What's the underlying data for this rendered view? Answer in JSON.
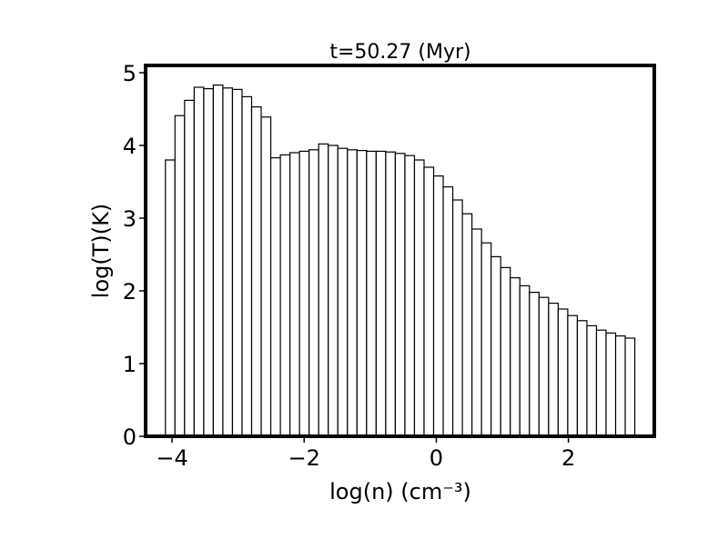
{
  "chart_data": {
    "type": "bar",
    "title": "t=50.27 (Myr)",
    "xlabel": "log(n) (cm⁻³)",
    "ylabel": "log(T)(K)",
    "xlim": [
      -4.4,
      3.3
    ],
    "ylim": [
      0,
      5.1
    ],
    "grid": false,
    "x_tick_labels": [
      "−4",
      "−2",
      "0",
      "2"
    ],
    "y_tick_labels": [
      "0",
      "1",
      "2",
      "3",
      "4",
      "5"
    ],
    "bin_edges": [
      -4.1,
      -3.955,
      -3.81,
      -3.665,
      -3.52,
      -3.375,
      -3.23,
      -3.085,
      -2.94,
      -2.795,
      -2.65,
      -2.505,
      -2.36,
      -2.215,
      -2.07,
      -1.925,
      -1.78,
      -1.635,
      -1.49,
      -1.345,
      -1.2,
      -1.055,
      -0.91,
      -0.765,
      -0.62,
      -0.475,
      -0.33,
      -0.185,
      -0.04,
      0.105,
      0.25,
      0.395,
      0.54,
      0.685,
      0.83,
      0.975,
      1.12,
      1.265,
      1.41,
      1.555,
      1.7,
      1.845,
      1.99,
      2.135,
      2.28,
      2.425,
      2.57,
      2.715,
      2.86,
      3.005
    ],
    "values": [
      3.8,
      4.41,
      4.62,
      4.8,
      4.78,
      4.83,
      4.79,
      4.77,
      4.67,
      4.53,
      4.39,
      3.83,
      3.87,
      3.9,
      3.92,
      3.94,
      4.02,
      4.0,
      3.96,
      3.94,
      3.93,
      3.92,
      3.92,
      3.91,
      3.89,
      3.86,
      3.8,
      3.7,
      3.58,
      3.43,
      3.25,
      3.06,
      2.85,
      2.66,
      2.47,
      2.32,
      2.18,
      2.07,
      1.98,
      1.91,
      1.83,
      1.75,
      1.66,
      1.59,
      1.52,
      1.46,
      1.42,
      1.38,
      1.35,
      1.32
    ],
    "bar_color": "#ffffff",
    "edge_color": "#000000"
  }
}
